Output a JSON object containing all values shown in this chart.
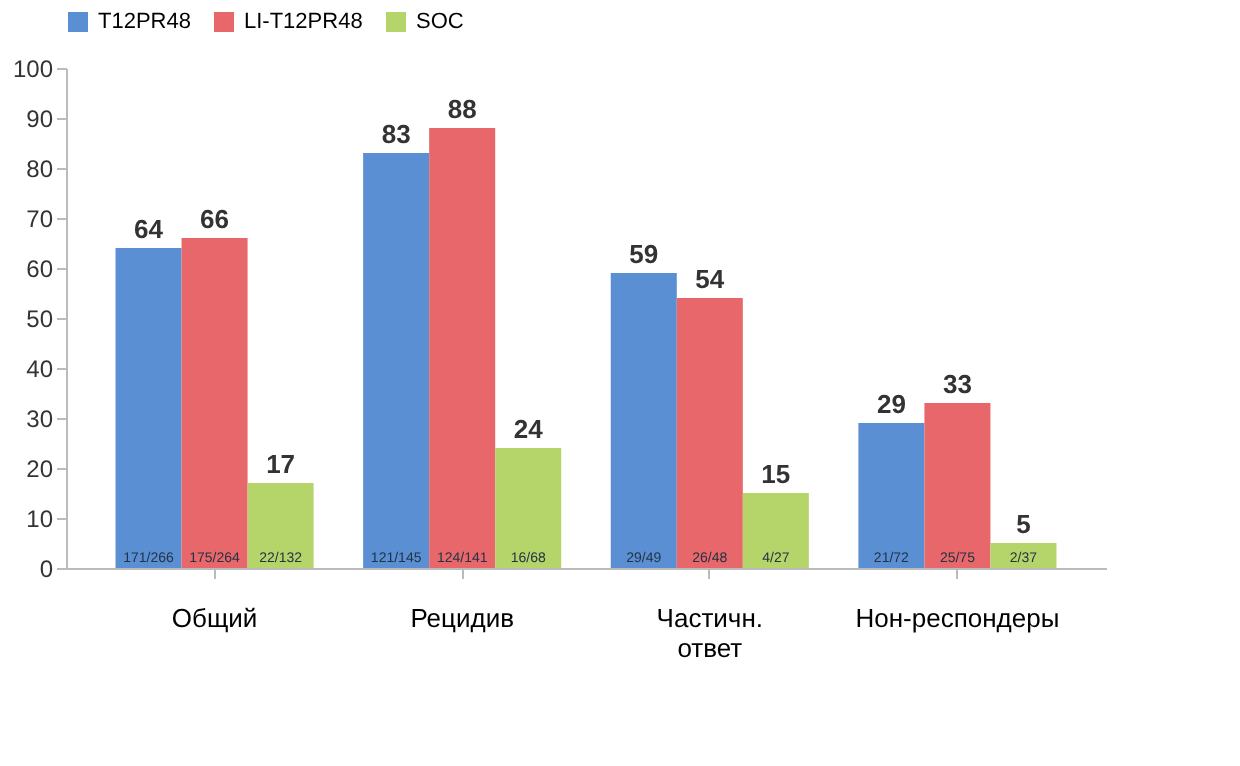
{
  "chart_data": {
    "type": "bar",
    "categories": [
      "Общий",
      "Рецидив",
      "Частичн. ответ",
      "Нон-респондеры"
    ],
    "series": [
      {
        "name": "T12PR48",
        "color": "#5b8fd4",
        "values": [
          64,
          83,
          59,
          29
        ]
      },
      {
        "name": "LI-T12PR48",
        "color": "#e8676a",
        "values": [
          66,
          88,
          54,
          33
        ]
      },
      {
        "name": "SOC",
        "color": "#b5d56a",
        "values": [
          17,
          24,
          15,
          5
        ]
      }
    ],
    "ylim": [
      0,
      100
    ],
    "yticks": [
      0,
      10,
      20,
      30,
      40,
      50,
      60,
      70,
      80,
      90,
      100
    ],
    "data_labels": true,
    "grid": false,
    "legend": "top",
    "annotations": [
      "171/266",
      "175/264",
      "22/132",
      "121/145",
      "124/141",
      "16/68",
      "29/49",
      "26/48",
      "4/27",
      "21/72",
      "25/75",
      "2/37"
    ]
  }
}
